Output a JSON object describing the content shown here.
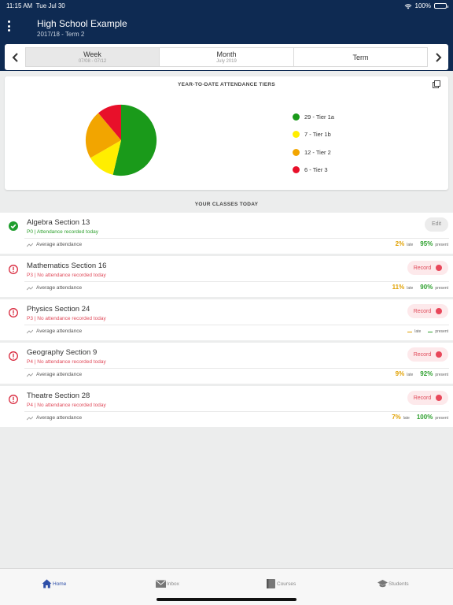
{
  "status_bar": {
    "time": "11:15 AM",
    "date": "Tue Jul 30",
    "battery": "100%"
  },
  "header": {
    "title": "High School Example",
    "subtitle": "2017/18 - Term 2"
  },
  "periods": [
    {
      "label": "Week",
      "sub": "07/08 - 07/12",
      "active": true
    },
    {
      "label": "Month",
      "sub": "July 2019",
      "active": false
    },
    {
      "label": "Term",
      "sub": "",
      "active": false
    }
  ],
  "tiers_card": {
    "title": "YEAR-TO-DATE ATTENDANCE TIERS",
    "legend": [
      {
        "label": "29 - Tier 1a",
        "color": "#1a9a1a",
        "value": 29
      },
      {
        "label": "7 - Tier 1b",
        "color": "#ffee00",
        "value": 7
      },
      {
        "label": "12 - Tier 2",
        "color": "#f2a500",
        "value": 12
      },
      {
        "label": "6 - Tier 3",
        "color": "#e8102a",
        "value": 6
      }
    ]
  },
  "classes_title": "YOUR CLASSES TODAY",
  "classes": [
    {
      "name": "Algebra Section 13",
      "detail": "P0 | Attendance recorded today",
      "recorded": true,
      "avg_label": "Average attendance",
      "late": "2%",
      "present": "95%",
      "button": "Edit"
    },
    {
      "name": "Mathematics Section 16",
      "detail": "P3 | No attendance recorded today",
      "recorded": false,
      "avg_label": "Average attendance",
      "late": "11%",
      "present": "90%",
      "button": "Record"
    },
    {
      "name": "Physics Section 24",
      "detail": "P3 | No attendance recorded today",
      "recorded": false,
      "avg_label": "Average attendance",
      "late": "",
      "present": "",
      "button": "Record"
    },
    {
      "name": "Geography Section 9",
      "detail": "P4 | No attendance recorded today",
      "recorded": false,
      "avg_label": "Average attendance",
      "late": "9%",
      "present": "92%",
      "button": "Record"
    },
    {
      "name": "Theatre Section 28",
      "detail": "P4 | No attendance recorded today",
      "recorded": false,
      "avg_label": "Average attendance",
      "late": "7%",
      "present": "100%",
      "button": "Record"
    }
  ],
  "stat_labels": {
    "late": "late",
    "present": "present"
  },
  "tabs": [
    {
      "label": "Home",
      "icon": "home-icon",
      "active": true
    },
    {
      "label": "Inbox",
      "icon": "mail-icon",
      "active": false
    },
    {
      "label": "Courses",
      "icon": "book-icon",
      "active": false
    },
    {
      "label": "Students",
      "icon": "graduation-cap-icon",
      "active": false
    }
  ],
  "colors": {
    "navy": "#0e2a52",
    "accent": "#2e4fa8",
    "ok": "#2ea02e",
    "alert": "#e04a5a",
    "late": "#e0a000"
  }
}
